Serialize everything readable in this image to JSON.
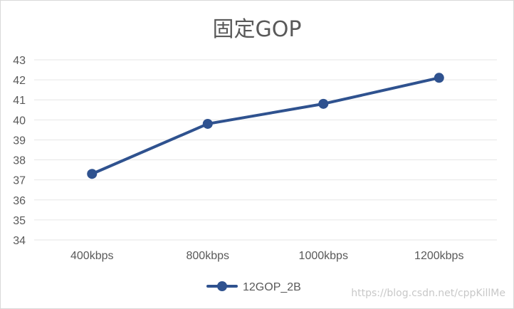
{
  "chart_data": {
    "type": "line",
    "title": "固定GOP",
    "categories": [
      "400kbps",
      "800kbps",
      "1000kbps",
      "1200kbps"
    ],
    "series": [
      {
        "name": "12GOP_2B",
        "values": [
          37.3,
          39.8,
          40.8,
          42.1
        ],
        "color": "#2f528f"
      }
    ],
    "ylim": [
      34,
      43
    ],
    "yticks": [
      "34",
      "35",
      "36",
      "37",
      "38",
      "39",
      "40",
      "41",
      "42",
      "43"
    ],
    "grid": true,
    "legend_position": "bottom"
  },
  "watermark": "https://blog.csdn.net/cppKillMe",
  "colors": {
    "grid": "#e6e6e6",
    "axis_text": "#595959"
  }
}
